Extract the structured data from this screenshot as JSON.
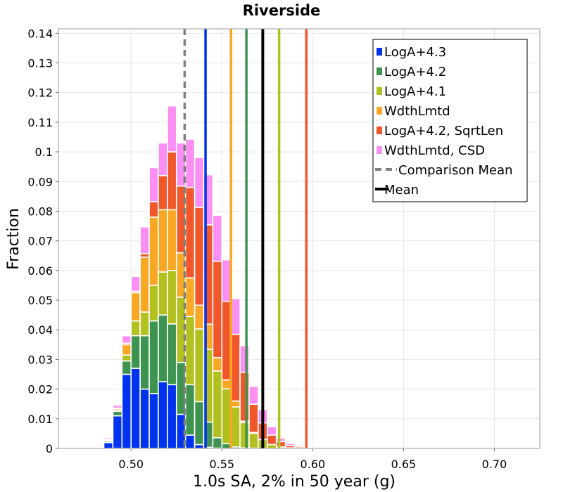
{
  "chart_data": {
    "type": "bar",
    "stacked": true,
    "title": "Riverside",
    "xlabel": "1.0s SA, 2% in 50 year (g)",
    "ylabel": "Fraction",
    "xlim": [
      0.46,
      0.725
    ],
    "ylim": [
      0,
      0.1415
    ],
    "bin_width": 0.005,
    "xticks": [
      0.5,
      0.55,
      0.6,
      0.65,
      0.7
    ],
    "xtick_labels": [
      "0.50",
      "0.55",
      "0.60",
      "0.65",
      "0.70"
    ],
    "yticks": [
      0,
      0.01,
      0.02,
      0.03,
      0.04,
      0.05,
      0.06,
      0.07,
      0.08,
      0.09,
      0.1,
      0.11,
      0.12,
      0.13,
      0.14
    ],
    "ytick_labels": [
      "0",
      "0.01",
      "0.02",
      "0.03",
      "0.04",
      "0.05",
      "0.06",
      "0.07",
      "0.08",
      "0.09",
      "0.1",
      "0.11",
      "0.12",
      "0.13",
      "0.14"
    ],
    "grid": true,
    "legend_position": "top-right",
    "bin_centers": [
      0.4825,
      0.4875,
      0.4925,
      0.4975,
      0.5025,
      0.5075,
      0.5125,
      0.5175,
      0.5225,
      0.5275,
      0.5325,
      0.5375,
      0.5425,
      0.5475,
      0.5525,
      0.5575,
      0.5625,
      0.5675,
      0.5725,
      0.5775,
      0.5825,
      0.5875,
      0.5925,
      0.5975,
      0.6025,
      0.6075,
      0.6125,
      0.6175,
      0.6225,
      0.6275,
      0.6325,
      0.6375,
      0.6425,
      0.6475,
      0.6525,
      0.6575,
      0.6625,
      0.6675,
      0.6725,
      0.6775,
      0.6825,
      0.6875,
      0.6925,
      0.6975,
      0.7025,
      0.7075,
      0.7125,
      0.7175
    ],
    "series": [
      {
        "name": "LogA+4.3",
        "color": "#0033ee",
        "values": [
          0.0003,
          0.002,
          0.011,
          0.025,
          0.027,
          0.02,
          0.0185,
          0.0225,
          0.0215,
          0.0115,
          0.0045,
          0.0013,
          0.0004,
          0.0001,
          0,
          0,
          0,
          0,
          0,
          0,
          0,
          0,
          0,
          0,
          0,
          0,
          0,
          0,
          0,
          0,
          0,
          0,
          0,
          0,
          0,
          0,
          0,
          0,
          0,
          0,
          0,
          0,
          0,
          0,
          0,
          0,
          0,
          0
        ]
      },
      {
        "name": "LogA+4.2",
        "color": "#3f9350",
        "values": [
          0.0002,
          0.0005,
          0.0015,
          0.0045,
          0.011,
          0.018,
          0.0245,
          0.0225,
          0.0205,
          0.0175,
          0.017,
          0.0145,
          0.0085,
          0.0035,
          0.0016,
          0.0005,
          0.0002,
          0.0001,
          0,
          0,
          0,
          0,
          0,
          0,
          0,
          0,
          0,
          0,
          0,
          0,
          0,
          0,
          0,
          0,
          0,
          0,
          0,
          0,
          0,
          0,
          0,
          0,
          0,
          0,
          0,
          0,
          0,
          0
        ]
      },
      {
        "name": "LogA+4.1",
        "color": "#b2c020",
        "values": [
          0.0001,
          0.0003,
          0.0005,
          0.002,
          0.005,
          0.008,
          0.012,
          0.0145,
          0.018,
          0.022,
          0.023,
          0.0245,
          0.0245,
          0.0225,
          0.0185,
          0.0135,
          0.0085,
          0.005,
          0.003,
          0.0013,
          0.0005,
          0.0002,
          0.0001,
          0,
          0,
          0,
          0,
          0,
          0,
          0,
          0,
          0,
          0,
          0,
          0,
          0,
          0,
          0,
          0,
          0,
          0,
          0,
          0,
          0,
          0,
          0,
          0,
          0
        ]
      },
      {
        "name": "WdthLmtd",
        "color": "#f9a825",
        "values": [
          0.0001,
          0.0002,
          0.0005,
          0.0035,
          0.0095,
          0.0185,
          0.023,
          0.021,
          0.0205,
          0.015,
          0.013,
          0.008,
          0.0085,
          0.0045,
          0.003,
          0.002,
          0.0005,
          0.0003,
          0.0001,
          0,
          0,
          0,
          0,
          0,
          0,
          0,
          0,
          0,
          0,
          0,
          0,
          0,
          0,
          0,
          0,
          0,
          0,
          0,
          0,
          0,
          0,
          0,
          0,
          0,
          0,
          0,
          0,
          0
        ]
      },
      {
        "name": "LogA+4.2, SqrtLen",
        "color": "#f0582c",
        "values": [
          0,
          0.0001,
          0.0001,
          0.0005,
          0.0005,
          0.0012,
          0.0052,
          0.0115,
          0.0195,
          0.0225,
          0.0305,
          0.033,
          0.0335,
          0.0325,
          0.0265,
          0.0225,
          0.0165,
          0.0095,
          0.0055,
          0.0032,
          0.0018,
          0.0008,
          0.0005,
          0.0003,
          0.0001,
          0,
          0,
          0,
          0,
          0,
          0,
          0,
          0,
          0,
          0,
          0,
          0,
          0,
          0,
          0,
          0,
          0,
          0,
          0,
          0,
          0,
          0,
          0
        ]
      },
      {
        "name": "WdthLmtd, CSD",
        "color": "#fb8ff4",
        "values": [
          0.0003,
          0.0005,
          0.001,
          0.0025,
          0.005,
          0.009,
          0.0115,
          0.011,
          0.0155,
          0.0145,
          0.0163,
          0.0168,
          0.0169,
          0.0155,
          0.014,
          0.012,
          0.009,
          0.006,
          0.0045,
          0.0028,
          0.0012,
          0.0007,
          0.0005,
          0.0003,
          0,
          0,
          0,
          0,
          0,
          0,
          0,
          0,
          0,
          0,
          0,
          0,
          0,
          0,
          0,
          0,
          0,
          0,
          0,
          0,
          0,
          0,
          0,
          0
        ]
      }
    ],
    "vertical_lines": [
      {
        "name": "LogA+4.3",
        "x": 0.541,
        "color": "#0033ee",
        "style": "solid"
      },
      {
        "name": "WdthLmtd",
        "x": 0.555,
        "color": "#f9a825",
        "style": "solid"
      },
      {
        "name": "LogA+4.2",
        "x": 0.5635,
        "color": "#3f9350",
        "style": "solid"
      },
      {
        "name": "LogA+4.1",
        "x": 0.5815,
        "color": "#b2c020",
        "style": "solid"
      },
      {
        "name": "LogA+4.2, SqrtLen",
        "x": 0.5965,
        "color": "#f0582c",
        "style": "solid"
      },
      {
        "name": "Comparison Mean",
        "x": 0.5295,
        "color": "#808080",
        "style": "dashed"
      },
      {
        "name": "Mean",
        "x": 0.5725,
        "color": "#000000",
        "style": "solid"
      }
    ],
    "legend": [
      {
        "label": "LogA+4.3",
        "kind": "box",
        "color": "#0033ee"
      },
      {
        "label": "LogA+4.2",
        "kind": "box",
        "color": "#3f9350"
      },
      {
        "label": "LogA+4.1",
        "kind": "box",
        "color": "#b2c020"
      },
      {
        "label": "WdthLmtd",
        "kind": "box",
        "color": "#f9a825"
      },
      {
        "label": "LogA+4.2, SqrtLen",
        "kind": "box",
        "color": "#f0582c"
      },
      {
        "label": "WdthLmtd, CSD",
        "kind": "box",
        "color": "#fb8ff4"
      },
      {
        "label": "Comparison Mean",
        "kind": "dashed",
        "color": "#808080"
      },
      {
        "label": "Mean",
        "kind": "line",
        "color": "#000000"
      }
    ]
  }
}
